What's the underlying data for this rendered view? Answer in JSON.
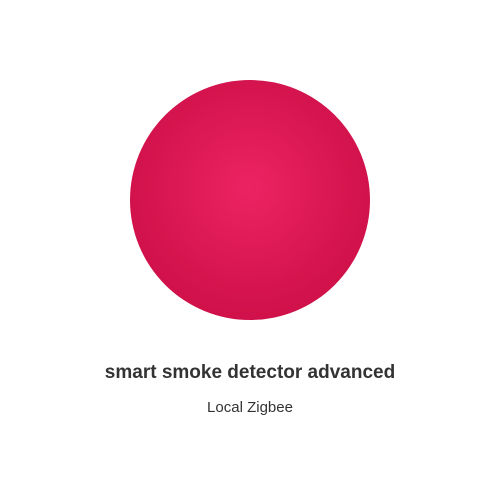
{
  "device": {
    "name": "smart smoke detector advanced",
    "protocol": "Local Zigbee",
    "image_color": "#e01a58"
  }
}
